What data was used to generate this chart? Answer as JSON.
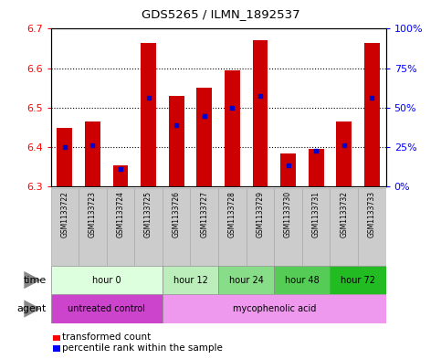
{
  "title": "GDS5265 / ILMN_1892537",
  "samples": [
    "GSM1133722",
    "GSM1133723",
    "GSM1133724",
    "GSM1133725",
    "GSM1133726",
    "GSM1133727",
    "GSM1133728",
    "GSM1133729",
    "GSM1133730",
    "GSM1133731",
    "GSM1133732",
    "GSM1133733"
  ],
  "bar_bottom": 6.3,
  "bar_tops": [
    6.45,
    6.465,
    6.355,
    6.665,
    6.53,
    6.55,
    6.595,
    6.67,
    6.385,
    6.395,
    6.465,
    6.665
  ],
  "percentile_vals": [
    6.4,
    6.405,
    6.345,
    6.525,
    6.455,
    6.48,
    6.5,
    6.53,
    6.355,
    6.39,
    6.405,
    6.525
  ],
  "bar_color": "#cc0000",
  "percentile_color": "#0000cc",
  "ylim": [
    6.3,
    6.7
  ],
  "y_ticks": [
    6.3,
    6.4,
    6.5,
    6.6,
    6.7
  ],
  "time_groups": [
    {
      "label": "hour 0",
      "start": 0,
      "end": 4,
      "color": "#ddffdd"
    },
    {
      "label": "hour 12",
      "start": 4,
      "end": 6,
      "color": "#bbeebb"
    },
    {
      "label": "hour 24",
      "start": 6,
      "end": 8,
      "color": "#88dd88"
    },
    {
      "label": "hour 48",
      "start": 8,
      "end": 10,
      "color": "#55cc55"
    },
    {
      "label": "hour 72",
      "start": 10,
      "end": 12,
      "color": "#22bb22"
    }
  ],
  "agent_groups": [
    {
      "label": "untreated control",
      "start": 0,
      "end": 4,
      "color": "#cc44cc"
    },
    {
      "label": "mycophenolic acid",
      "start": 4,
      "end": 12,
      "color": "#ee99ee"
    }
  ],
  "legend_bar_label": "transformed count",
  "legend_pct_label": "percentile rank within the sample",
  "bar_width": 0.55
}
